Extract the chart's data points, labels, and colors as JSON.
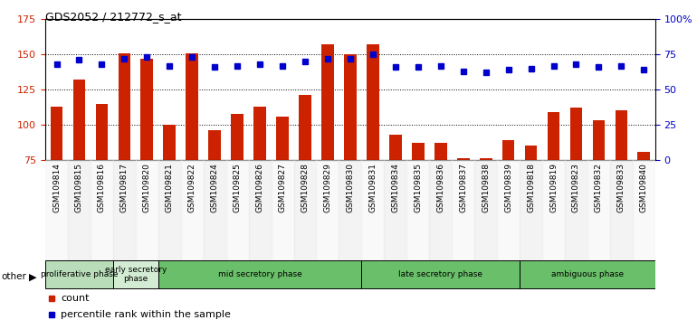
{
  "title": "GDS2052 / 212772_s_at",
  "samples": [
    "GSM109814",
    "GSM109815",
    "GSM109816",
    "GSM109817",
    "GSM109820",
    "GSM109821",
    "GSM109822",
    "GSM109824",
    "GSM109825",
    "GSM109826",
    "GSM109827",
    "GSM109828",
    "GSM109829",
    "GSM109830",
    "GSM109831",
    "GSM109834",
    "GSM109835",
    "GSM109836",
    "GSM109837",
    "GSM109838",
    "GSM109839",
    "GSM109818",
    "GSM109819",
    "GSM109823",
    "GSM109832",
    "GSM109833",
    "GSM109840"
  ],
  "counts": [
    113,
    132,
    115,
    151,
    147,
    100,
    151,
    96,
    108,
    113,
    106,
    121,
    157,
    150,
    157,
    93,
    87,
    87,
    76,
    76,
    89,
    85,
    109,
    112,
    103,
    110,
    81
  ],
  "percentiles": [
    68,
    71,
    68,
    72,
    73,
    67,
    73,
    66,
    67,
    68,
    67,
    70,
    72,
    72,
    75,
    66,
    66,
    67,
    63,
    62,
    64,
    65,
    67,
    68,
    66,
    67,
    64
  ],
  "phases": [
    {
      "label": "proliferative phase",
      "start": 0,
      "end": 3,
      "color": "#b8ddb8"
    },
    {
      "label": "early secretory\nphase",
      "start": 3,
      "end": 5,
      "color": "#d4ecd4"
    },
    {
      "label": "mid secretory phase",
      "start": 5,
      "end": 14,
      "color": "#6abf6a"
    },
    {
      "label": "late secretory phase",
      "start": 14,
      "end": 21,
      "color": "#6abf6a"
    },
    {
      "label": "ambiguous phase",
      "start": 21,
      "end": 27,
      "color": "#6abf6a"
    }
  ],
  "ylim_left": [
    75,
    175
  ],
  "ylim_right": [
    0,
    100
  ],
  "yticks_left": [
    75,
    100,
    125,
    150,
    175
  ],
  "yticks_right": [
    0,
    25,
    50,
    75,
    100
  ],
  "bar_color": "#cc2200",
  "dot_color": "#0000cc",
  "bg_color": "#ffffff",
  "legend_count_label": "count",
  "legend_pct_label": "percentile rank within the sample"
}
